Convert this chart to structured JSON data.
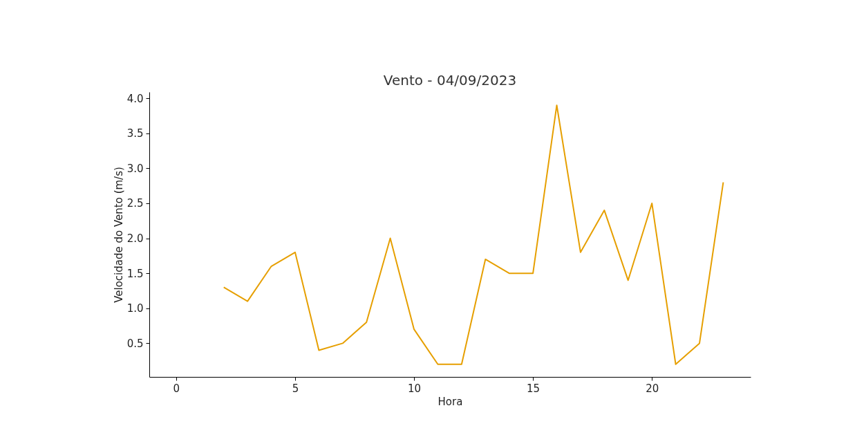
{
  "chart_data": {
    "type": "line",
    "title": "Vento - 04/09/2023",
    "xlabel": "Hora",
    "ylabel": "Velocidade do Vento (m/s)",
    "x": [
      2,
      3,
      4,
      5,
      6,
      7,
      8,
      9,
      10,
      11,
      12,
      13,
      14,
      15,
      16,
      17,
      18,
      19,
      20,
      21,
      22,
      23
    ],
    "series": [
      {
        "color": "#e69f00",
        "values": [
          1.3,
          1.1,
          1.6,
          1.8,
          0.4,
          0.5,
          0.8,
          2.0,
          0.7,
          0.2,
          0.2,
          1.7,
          1.5,
          1.5,
          3.9,
          1.8,
          2.4,
          1.4,
          2.5,
          0.2,
          0.5,
          2.8
        ]
      }
    ],
    "xlim": [
      -1.13,
      24.15
    ],
    "ylim": [
      0.02,
      4.09
    ],
    "xticks": [
      0,
      5,
      10,
      15,
      20
    ],
    "yticks": [
      0.5,
      {
        "value": 1,
        "label": "1.0"
      },
      1.5,
      {
        "value": 2,
        "label": "2.0"
      },
      2.5,
      {
        "value": 3,
        "label": "3.0"
      },
      3.5,
      {
        "value": 4,
        "label": "4.0"
      }
    ],
    "grid": false,
    "legend": false,
    "marker": "none",
    "line_style": "solid"
  }
}
